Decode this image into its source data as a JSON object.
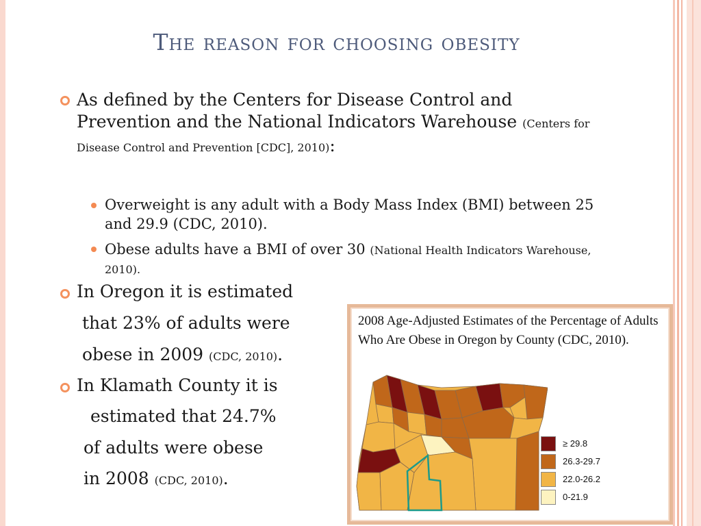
{
  "slide": {
    "title": "The reason for choosing obesity",
    "bullet1": {
      "main": "As defined by the Centers for Disease Control and Prevention and the National Indicators Warehouse",
      "cite": "(Centers for Disease Control and Prevention [CDC], 2010)",
      "colon": ":"
    },
    "sub1": "Overweight is any adult with a Body Mass Index (BMI) between 25 and 29.9 (CDC, 2010).",
    "sub2": {
      "main": "Obese adults have a BMI of over 30",
      "cite": "(National Health Indicators Warehouse, 2010)."
    },
    "bullet2": {
      "line1": "In Oregon it is estimated",
      "line2": "that 23% of adults were",
      "line3": "obese in 2009",
      "cite": "(CDC, 2010)",
      "end": "."
    },
    "bullet3": {
      "line1": "In Klamath County it is",
      "line2": "estimated that 24.7%",
      "line3": "of adults were obese",
      "line4": "in 2008",
      "cite": "(CDC, 2010)",
      "end": "."
    }
  },
  "map": {
    "caption": "2008 Age-Adjusted Estimates of the Percentage of Adults Who Are Obese in Oregon by County (CDC, 2010).",
    "legend": [
      {
        "label": "≥ 29.8",
        "color": "#7a1010"
      },
      {
        "label": "26.3-29.7",
        "color": "#c0671a"
      },
      {
        "label": "22.0-26.2",
        "color": "#f1b546"
      },
      {
        "label": "0-21.9",
        "color": "#fdf3c0"
      }
    ],
    "county_colors": {
      "dark": "#7a1010",
      "brown": "#c0671a",
      "gold": "#f1b546",
      "pale": "#fdf3c0",
      "highlight": "#1d9a8a"
    }
  }
}
